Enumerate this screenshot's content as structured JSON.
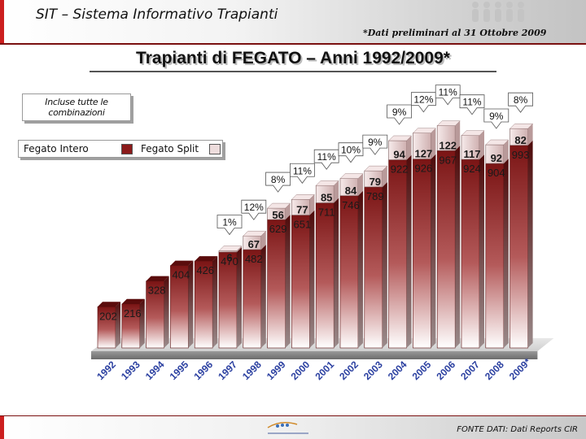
{
  "header": {
    "title": "SIT – Sistema Informativo Trapianti",
    "note": "*Dati preliminari al 31 Ottobre 2009"
  },
  "page_title": "Trapianti di FEGATO – Anni 1992/2009*",
  "note_box": "Incluse tutte le combinazioni",
  "footer": {
    "source": "FONTE DATI: Dati Reports CIR"
  },
  "colors": {
    "intero": "#8b1a1a",
    "split": "#eddcdc",
    "accent": "#cc1f1f"
  },
  "chart_data": {
    "type": "bar",
    "stacked": true,
    "categories": [
      "1992",
      "1993",
      "1994",
      "1995",
      "1996",
      "1997",
      "1998",
      "1999",
      "2000",
      "2001",
      "2002",
      "2003",
      "2004",
      "2005",
      "2006",
      "2007",
      "2008",
      "2009*"
    ],
    "series": [
      {
        "name": "Fegato Intero",
        "values": [
          202,
          216,
          328,
          404,
          426,
          470,
          482,
          629,
          651,
          711,
          746,
          789,
          922,
          926,
          967,
          924,
          904,
          993
        ]
      },
      {
        "name": "Fegato Split",
        "values": [
          null,
          null,
          null,
          null,
          null,
          6,
          67,
          56,
          77,
          85,
          84,
          79,
          94,
          127,
          122,
          117,
          92,
          82
        ]
      }
    ],
    "split_percent_labels": [
      "",
      "",
      "",
      "",
      "",
      "1%",
      "12%",
      "8%",
      "11%",
      "11%",
      "10%",
      "9%",
      "9%",
      "12%",
      "11%",
      "11%",
      "9%",
      "8%"
    ],
    "legend": [
      "Fegato Intero",
      "Fegato Split"
    ],
    "legend_position": "top-left",
    "grid": false
  }
}
